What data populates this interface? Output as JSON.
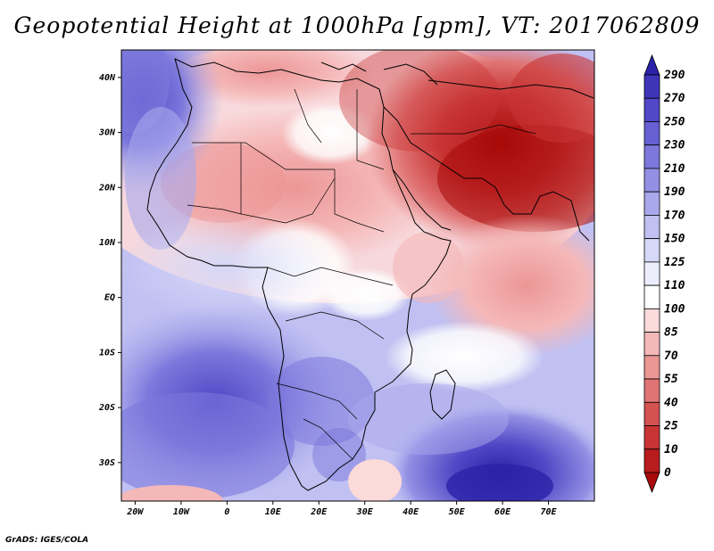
{
  "title": "Geopotential Height at 1000hPa [gpm], VT: 2017062809",
  "credit": "GrADS: IGES/COLA",
  "map": {
    "lon_range": [
      -23,
      80
    ],
    "lat_range": [
      -37,
      45
    ],
    "x_ticks": [
      {
        "lon": -20,
        "label": "20W"
      },
      {
        "lon": -10,
        "label": "10W"
      },
      {
        "lon": 0,
        "label": "0"
      },
      {
        "lon": 10,
        "label": "10E"
      },
      {
        "lon": 20,
        "label": "20E"
      },
      {
        "lon": 30,
        "label": "30E"
      },
      {
        "lon": 40,
        "label": "40E"
      },
      {
        "lon": 50,
        "label": "50E"
      },
      {
        "lon": 60,
        "label": "60E"
      },
      {
        "lon": 70,
        "label": "70E"
      }
    ],
    "y_ticks": [
      {
        "lat": 40,
        "label": "40N"
      },
      {
        "lat": 30,
        "label": "30N"
      },
      {
        "lat": 20,
        "label": "20N"
      },
      {
        "lat": 10,
        "label": "10N"
      },
      {
        "lat": 0,
        "label": "EQ"
      },
      {
        "lat": -10,
        "label": "10S"
      },
      {
        "lat": -20,
        "label": "20S"
      },
      {
        "lat": -30,
        "label": "30S"
      }
    ]
  },
  "colorbar": {
    "levels": [
      "290",
      "270",
      "250",
      "230",
      "210",
      "190",
      "170",
      "150",
      "125",
      "110",
      "100",
      "85",
      "70",
      "55",
      "40",
      "25",
      "10",
      "0"
    ],
    "colors": [
      "#2a22a8",
      "#3d34b8",
      "#5048c6",
      "#6660d2",
      "#7c78dc",
      "#9390e4",
      "#a9a8ec",
      "#c0c0f2",
      "#d6d8f8",
      "#eceefc",
      "#ffffff",
      "#fcdada",
      "#f5b8b8",
      "#ec9696",
      "#e07474",
      "#d45252",
      "#c83434",
      "#b81c1c",
      "#a80a0a"
    ]
  }
}
